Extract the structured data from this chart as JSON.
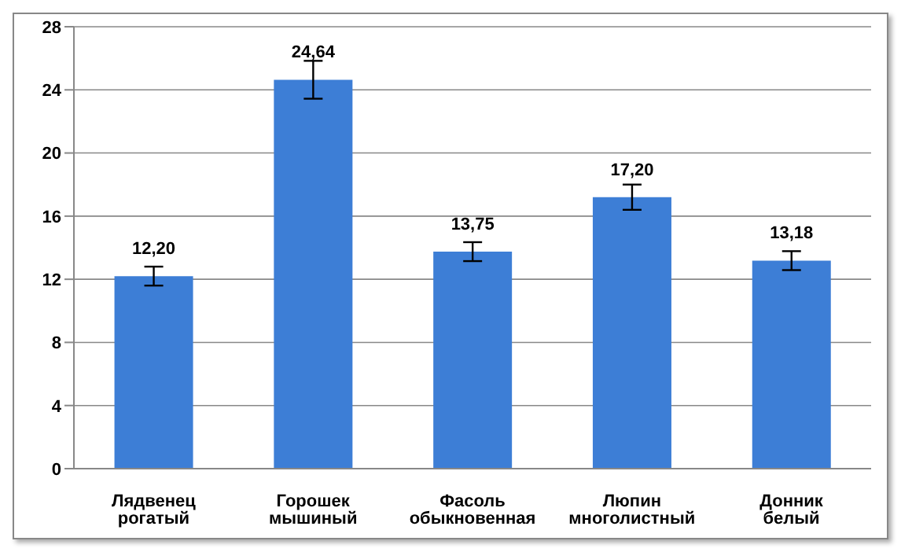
{
  "chart_data": {
    "type": "bar",
    "categories": [
      "Лядвенец рогатый",
      "Горошек мышиный",
      "Фасоль обыкновенная",
      "Люпин многолистный",
      "Донник белый"
    ],
    "values": [
      12.2,
      24.64,
      13.75,
      17.2,
      13.18
    ],
    "value_labels": [
      "12,20",
      "24,64",
      "13,75",
      "17,20",
      "13,18"
    ],
    "errors": [
      0.6,
      1.2,
      0.6,
      0.8,
      0.6
    ],
    "color": "#3d7ed6",
    "ylim": [
      0,
      28
    ],
    "yticks": [
      0,
      4,
      8,
      12,
      16,
      20,
      24,
      28
    ],
    "grid": "y",
    "legend": false
  }
}
